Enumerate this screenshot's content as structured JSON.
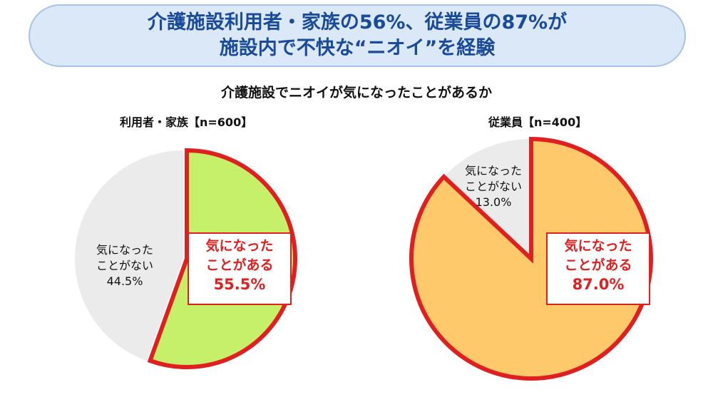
{
  "header": {
    "line1": "介護施設利用者・家族の56%、従業員の87%が",
    "line2": "施設内で不快な“ニオイ”を経験"
  },
  "subtitle": "介護施設でニオイが気になったことがあるか",
  "colors": {
    "banner_bg": "#dbe8f8",
    "banner_text": "#1a4a9a",
    "highlight_border": "#e02020",
    "gray_slice": "#ebebeb",
    "green_slice": "#c6ef6a",
    "orange_slice": "#fdc96a"
  },
  "chart_data": [
    {
      "type": "pie",
      "title": "利用者・家族【n=600】",
      "slices": [
        {
          "label_line1": "気になった",
          "label_line2": "ことがある",
          "value": 55.5,
          "value_label": "55.5%",
          "color": "#c6ef6a",
          "highlight": true
        },
        {
          "label_line1": "気になった",
          "label_line2": "ことがない",
          "value": 44.5,
          "value_label": "44.5%",
          "color": "#ebebeb",
          "highlight": false
        }
      ]
    },
    {
      "type": "pie",
      "title": "従業員【n=400】",
      "slices": [
        {
          "label_line1": "気になった",
          "label_line2": "ことがある",
          "value": 87.0,
          "value_label": "87.0%",
          "color": "#fdc96a",
          "highlight": true
        },
        {
          "label_line1": "気になった",
          "label_line2": "ことがない",
          "value": 13.0,
          "value_label": "13.0%",
          "color": "#ebebeb",
          "highlight": false
        }
      ]
    }
  ]
}
